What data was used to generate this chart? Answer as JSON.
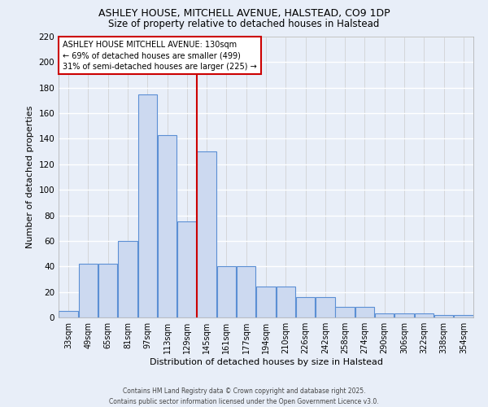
{
  "title1": "ASHLEY HOUSE, MITCHELL AVENUE, HALSTEAD, CO9 1DP",
  "title2": "Size of property relative to detached houses in Halstead",
  "xlabel": "Distribution of detached houses by size in Halstead",
  "ylabel": "Number of detached properties",
  "bins": [
    "33sqm",
    "49sqm",
    "65sqm",
    "81sqm",
    "97sqm",
    "113sqm",
    "129sqm",
    "145sqm",
    "161sqm",
    "177sqm",
    "194sqm",
    "210sqm",
    "226sqm",
    "242sqm",
    "258sqm",
    "274sqm",
    "290sqm",
    "306sqm",
    "322sqm",
    "338sqm",
    "354sqm"
  ],
  "values": [
    5,
    42,
    42,
    60,
    175,
    143,
    75,
    130,
    40,
    40,
    24,
    24,
    16,
    16,
    8,
    8,
    3,
    3,
    3,
    2,
    2
  ],
  "bar_color": "#ccd9f0",
  "bar_edge_color": "#5b8fd4",
  "vline_color": "#cc0000",
  "annotation_text": "ASHLEY HOUSE MITCHELL AVENUE: 130sqm\n← 69% of detached houses are smaller (499)\n31% of semi-detached houses are larger (225) →",
  "annotation_box_edge": "#cc0000",
  "footer": "Contains HM Land Registry data © Crown copyright and database right 2025.\nContains public sector information licensed under the Open Government Licence v3.0.",
  "bg_color": "#e8eef8",
  "ylim": [
    0,
    220
  ],
  "yticks": [
    0,
    20,
    40,
    60,
    80,
    100,
    120,
    140,
    160,
    180,
    200,
    220
  ]
}
